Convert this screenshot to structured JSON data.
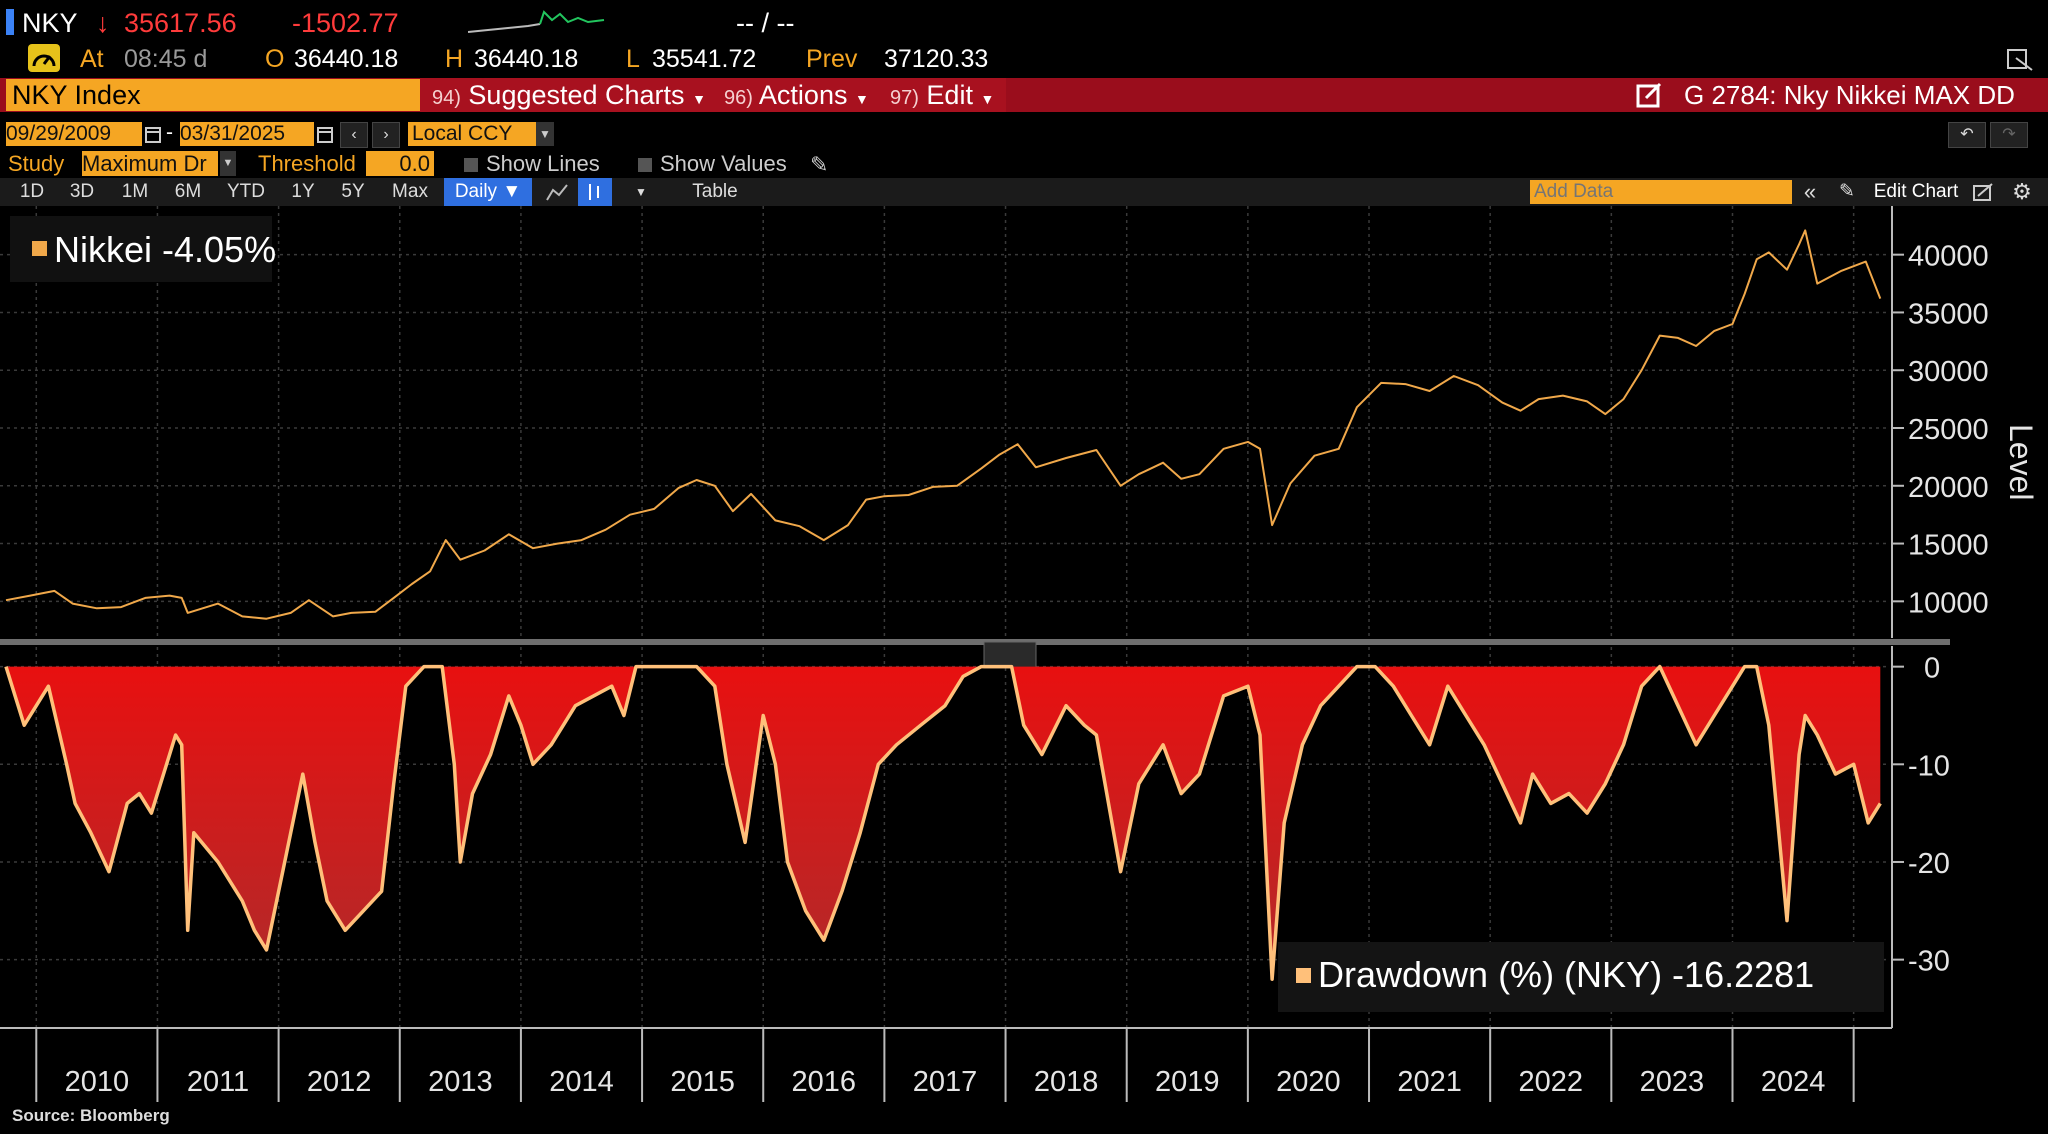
{
  "ticker": {
    "symbol": "NKY",
    "last": "35617.56",
    "change": "-1502.77",
    "bid_ask": "-- / --",
    "at_label": "At",
    "time": "08:45 d",
    "open_label": "O",
    "open": "36440.18",
    "high_label": "H",
    "high": "36440.18",
    "low_label": "L",
    "low": "35541.72",
    "prev_label": "Prev",
    "prev": "37120.33",
    "colors": {
      "down": "#ff3b3b",
      "accent": "#f5a623",
      "sparkline": "#22c55e"
    }
  },
  "toolbar": {
    "security": "NKY Index",
    "menus": [
      {
        "num": "94)",
        "label": "Suggested Charts"
      },
      {
        "num": "96)",
        "label": "Actions"
      },
      {
        "num": "97)",
        "label": "Edit"
      }
    ],
    "chart_title": "G 2784: Nky Nikkei MAX DD"
  },
  "range": {
    "start": "09/29/2009",
    "end": "03/31/2025",
    "currency": "Local CCY"
  },
  "study": {
    "label": "Study",
    "value": "Maximum Dr",
    "threshold_label": "Threshold",
    "threshold": "0.0",
    "show_lines": "Show Lines",
    "show_values": "Show Values"
  },
  "periods": [
    "1D",
    "3D",
    "1M",
    "6M",
    "YTD",
    "1Y",
    "5Y",
    "Max"
  ],
  "frequency": "Daily ▼",
  "table_label": "Table",
  "add_data_placeholder": "Add Data",
  "edit_chart_label": "Edit Chart",
  "source": "Source: Bloomberg",
  "chart_data": [
    {
      "type": "line",
      "title": "",
      "legend": "Nikkei -4.05%",
      "ylabel": "Level",
      "ylim": [
        7000,
        43000
      ],
      "yticks": [
        10000,
        15000,
        20000,
        25000,
        30000,
        35000,
        40000
      ],
      "color": "#f0a84a",
      "x": [
        2009.75,
        2009.95,
        2010.15,
        2010.3,
        2010.5,
        2010.7,
        2010.9,
        2011.1,
        2011.2,
        2011.25,
        2011.5,
        2011.7,
        2011.9,
        2012.1,
        2012.25,
        2012.45,
        2012.6,
        2012.8,
        2012.95,
        2013.1,
        2013.25,
        2013.38,
        2013.5,
        2013.7,
        2013.9,
        2014.1,
        2014.3,
        2014.5,
        2014.7,
        2014.9,
        2015.1,
        2015.3,
        2015.45,
        2015.6,
        2015.75,
        2015.9,
        2016.1,
        2016.3,
        2016.5,
        2016.7,
        2016.85,
        2017.0,
        2017.2,
        2017.4,
        2017.6,
        2017.8,
        2017.95,
        2018.1,
        2018.25,
        2018.5,
        2018.75,
        2018.95,
        2019.1,
        2019.3,
        2019.45,
        2019.6,
        2019.8,
        2020.0,
        2020.1,
        2020.2,
        2020.35,
        2020.55,
        2020.75,
        2020.9,
        2021.1,
        2021.3,
        2021.5,
        2021.7,
        2021.9,
        2022.1,
        2022.25,
        2022.4,
        2022.6,
        2022.8,
        2022.95,
        2023.1,
        2023.25,
        2023.4,
        2023.55,
        2023.7,
        2023.85,
        2024.0,
        2024.1,
        2024.2,
        2024.3,
        2024.45,
        2024.55,
        2024.6,
        2024.7,
        2024.9,
        2025.1,
        2025.22
      ],
      "y": [
        10100,
        10500,
        10900,
        9800,
        9400,
        9500,
        10300,
        10500,
        10300,
        9000,
        9800,
        8700,
        8500,
        9000,
        10100,
        8700,
        9000,
        9100,
        10300,
        11500,
        12600,
        15300,
        13600,
        14400,
        15800,
        14600,
        15000,
        15300,
        16200,
        17500,
        18000,
        19800,
        20500,
        20000,
        17800,
        19300,
        17000,
        16500,
        15300,
        16600,
        18800,
        19100,
        19200,
        19900,
        20000,
        21500,
        22700,
        23600,
        21600,
        22400,
        23100,
        20000,
        21000,
        22000,
        20600,
        21000,
        23200,
        23800,
        23200,
        16600,
        20200,
        22600,
        23200,
        26800,
        28900,
        28800,
        28200,
        29500,
        28700,
        27200,
        26500,
        27500,
        27800,
        27300,
        26200,
        27500,
        30000,
        33000,
        32800,
        32100,
        33400,
        34000,
        36600,
        39600,
        40200,
        38700,
        40900,
        42100,
        37500,
        38600,
        39400,
        36200
      ]
    },
    {
      "type": "area",
      "title": "",
      "legend": "Drawdown (%) (NKY) -16.2281",
      "ylabel": "",
      "ylim": [
        -37,
        1.5
      ],
      "yticks": [
        0,
        -10,
        -20,
        -30
      ],
      "color": "#ffc07a",
      "fill": "#e81010",
      "x": [
        2009.75,
        2009.9,
        2010.1,
        2010.25,
        2010.32,
        2010.45,
        2010.6,
        2010.75,
        2010.85,
        2010.95,
        2011.1,
        2011.15,
        2011.2,
        2011.25,
        2011.3,
        2011.5,
        2011.7,
        2011.8,
        2011.9,
        2012.05,
        2012.2,
        2012.3,
        2012.4,
        2012.55,
        2012.7,
        2012.85,
        2012.95,
        2013.05,
        2013.2,
        2013.35,
        2013.45,
        2013.5,
        2013.6,
        2013.75,
        2013.9,
        2014.0,
        2014.1,
        2014.25,
        2014.45,
        2014.6,
        2014.75,
        2014.85,
        2014.95,
        2015.1,
        2015.3,
        2015.45,
        2015.6,
        2015.7,
        2015.85,
        2016.0,
        2016.1,
        2016.2,
        2016.35,
        2016.5,
        2016.65,
        2016.8,
        2016.95,
        2017.1,
        2017.3,
        2017.5,
        2017.65,
        2017.8,
        2017.95,
        2018.05,
        2018.15,
        2018.3,
        2018.5,
        2018.65,
        2018.75,
        2018.95,
        2019.1,
        2019.3,
        2019.45,
        2019.6,
        2019.8,
        2020.0,
        2020.1,
        2020.2,
        2020.3,
        2020.45,
        2020.6,
        2020.75,
        2020.9,
        2021.05,
        2021.2,
        2021.35,
        2021.5,
        2021.65,
        2021.8,
        2021.95,
        2022.1,
        2022.25,
        2022.35,
        2022.5,
        2022.65,
        2022.8,
        2022.95,
        2023.1,
        2023.25,
        2023.4,
        2023.55,
        2023.7,
        2023.85,
        2024.0,
        2024.1,
        2024.2,
        2024.3,
        2024.45,
        2024.55,
        2024.6,
        2024.7,
        2024.85,
        2025.0,
        2025.12,
        2025.22
      ],
      "y": [
        0,
        -6,
        -2,
        -10,
        -14,
        -17,
        -21,
        -14,
        -13,
        -15,
        -9,
        -7,
        -8,
        -27,
        -17,
        -20,
        -24,
        -27,
        -29,
        -20,
        -11,
        -18,
        -24,
        -27,
        -25,
        -23,
        -12,
        -2,
        0,
        0,
        -10,
        -20,
        -13,
        -9,
        -3,
        -6,
        -10,
        -8,
        -4,
        -3,
        -2,
        -5,
        0,
        0,
        0,
        0,
        -2,
        -10,
        -18,
        -5,
        -10,
        -20,
        -25,
        -28,
        -23,
        -17,
        -10,
        -8,
        -6,
        -4,
        -1,
        0,
        0,
        0,
        -6,
        -9,
        -4,
        -6,
        -7,
        -21,
        -12,
        -8,
        -13,
        -11,
        -3,
        -2,
        -7,
        -32,
        -16,
        -8,
        -4,
        -2,
        0,
        0,
        -2,
        -5,
        -8,
        -2,
        -5,
        -8,
        -12,
        -16,
        -11,
        -14,
        -13,
        -15,
        -12,
        -8,
        -2,
        0,
        -4,
        -8,
        -5,
        -2,
        0,
        0,
        -6,
        -26,
        -9,
        -5,
        -7,
        -11,
        -10,
        -16,
        -14
      ]
    }
  ],
  "x_axis": {
    "years": [
      "2010",
      "2011",
      "2012",
      "2013",
      "2014",
      "2015",
      "2016",
      "2017",
      "2018",
      "2019",
      "2020",
      "2021",
      "2022",
      "2023",
      "2024"
    ]
  }
}
